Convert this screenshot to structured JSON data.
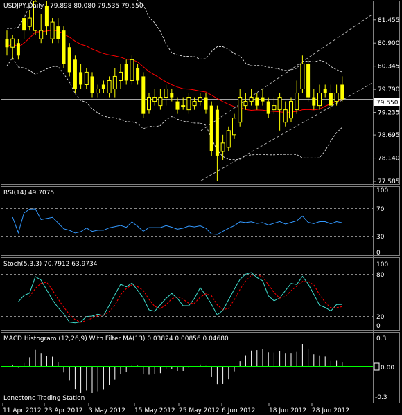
{
  "panels": {
    "price": {
      "symbol": "USDJPY,Daily",
      "ohlc": "79.898 80.080 79.535 79.550",
      "current_price": "79.550",
      "axis": {
        "min": 77.585,
        "max": 81.7,
        "ticks": [
          "81.455",
          "80.900",
          "80.345",
          "79.790",
          "79.235",
          "78.695",
          "78.140",
          "77.585"
        ]
      }
    },
    "rsi": {
      "label": "RSI(14) 49.7075",
      "levels": [
        "70",
        "30"
      ],
      "max_label": "100",
      "min_label": "0"
    },
    "stoch": {
      "label": "Stoch(5,3,3) 70.7912 63.9734",
      "ticks": [
        "100",
        "80",
        "20",
        "0"
      ]
    },
    "macd": {
      "label": "MACD Histogram (12,26,9) With Filter MA(13) 0.03824 0.00856 0.04680",
      "ticks": [
        "0.3",
        "0.00",
        "-0.3"
      ]
    }
  },
  "watermark": "Lonestone Trading Station",
  "x_axis_labels": [
    "11 Apr 2012",
    "23 Apr 2012",
    "3 May 2012",
    "15 May 2012",
    "25 May 2012",
    "6 Jun 2012",
    "18 Jun 2012",
    "28 Jun 2012"
  ],
  "colors": {
    "candle": "#ffff00",
    "ma": "#ff0000",
    "rsi": "#3399ff",
    "stoch_main": "#40e0d0",
    "stoch_signal": "#ff0000",
    "macd_zero": "#00ff00",
    "grid": "#666666"
  },
  "chart_data": {
    "type": "candlestick",
    "x": [
      "2012-04-10",
      "2012-04-11",
      "2012-04-12",
      "2012-04-13",
      "2012-04-16",
      "2012-04-17",
      "2012-04-18",
      "2012-04-19",
      "2012-04-20",
      "2012-04-23",
      "2012-04-24",
      "2012-04-25",
      "2012-04-26",
      "2012-04-27",
      "2012-04-30",
      "2012-05-01",
      "2012-05-02",
      "2012-05-03",
      "2012-05-04",
      "2012-05-07",
      "2012-05-08",
      "2012-05-09",
      "2012-05-10",
      "2012-05-11",
      "2012-05-14",
      "2012-05-15",
      "2012-05-16",
      "2012-05-17",
      "2012-05-18",
      "2012-05-21",
      "2012-05-22",
      "2012-05-23",
      "2012-05-24",
      "2012-05-25",
      "2012-05-28",
      "2012-05-29",
      "2012-05-30",
      "2012-05-31",
      "2012-06-01",
      "2012-06-04",
      "2012-06-05",
      "2012-06-06",
      "2012-06-07",
      "2012-06-08",
      "2012-06-11",
      "2012-06-12",
      "2012-06-13",
      "2012-06-14",
      "2012-06-15",
      "2012-06-18",
      "2012-06-19",
      "2012-06-20",
      "2012-06-21",
      "2012-06-22",
      "2012-06-25",
      "2012-06-26",
      "2012-06-27",
      "2012-06-28",
      "2012-06-29",
      "2012-07-02"
    ],
    "open": [
      81.0,
      80.8,
      80.9,
      81.5,
      81.3,
      81.2,
      81.0,
      81.8,
      81.0,
      81.3,
      81.2,
      80.8,
      80.5,
      80.2,
      79.9,
      80.1,
      79.7,
      79.9,
      79.7,
      79.8,
      80.0,
      80.4,
      80.0,
      80.3,
      80.1,
      79.3,
      79.5,
      79.4,
      79.6,
      79.7,
      79.5,
      79.4,
      79.3,
      79.4,
      79.5,
      79.6,
      79.4,
      79.3,
      78.3,
      78.4,
      78.7,
      79.0,
      79.4,
      79.5,
      79.6,
      79.6,
      79.5,
      79.3,
      79.3,
      79.0,
      79.1,
      79.3,
      79.8,
      80.4,
      79.6,
      79.4,
      79.8,
      79.7,
      79.5,
      79.9
    ],
    "close": [
      80.8,
      81.0,
      80.6,
      81.2,
      81.5,
      81.9,
      81.2,
      81.3,
      81.4,
      81.0,
      80.4,
      80.2,
      79.8,
      79.9,
      80.2,
      79.7,
      79.8,
      79.8,
      80.0,
      80.1,
      80.2,
      80.0,
      80.5,
      80.0,
      79.2,
      79.6,
      79.6,
      79.6,
      79.8,
      79.6,
      79.3,
      79.4,
      79.6,
      79.5,
      79.6,
      79.3,
      78.3,
      78.2,
      78.5,
      78.8,
      79.1,
      79.6,
      79.5,
      79.6,
      79.4,
      79.5,
      79.2,
      79.4,
      79.6,
      79.3,
      79.5,
      79.7,
      80.4,
      79.6,
      79.4,
      79.7,
      79.7,
      79.4,
      79.7,
      79.55
    ],
    "high": [
      81.2,
      81.1,
      81.0,
      81.6,
      81.7,
      82.0,
      81.6,
      81.9,
      81.5,
      81.5,
      81.3,
      80.9,
      80.6,
      80.4,
      80.3,
      80.2,
      79.9,
      80.0,
      80.1,
      80.3,
      80.4,
      80.5,
      80.6,
      80.4,
      80.2,
      79.7,
      79.8,
      79.8,
      79.9,
      79.8,
      79.6,
      79.6,
      79.7,
      79.6,
      79.7,
      79.7,
      79.5,
      79.4,
      78.7,
      78.9,
      79.2,
      79.8,
      79.7,
      79.8,
      79.7,
      79.8,
      79.6,
      79.6,
      79.7,
      79.5,
      79.6,
      80.0,
      80.6,
      80.5,
      79.8,
      79.9,
      79.9,
      79.9,
      79.9,
      80.1
    ],
    "low": [
      80.6,
      80.5,
      80.5,
      81.0,
      81.2,
      81.1,
      80.9,
      81.1,
      80.9,
      80.9,
      80.3,
      80.1,
      79.7,
      79.8,
      79.8,
      79.6,
      79.6,
      79.7,
      79.6,
      79.6,
      79.8,
      79.9,
      79.9,
      79.9,
      79.1,
      79.2,
      79.4,
      79.3,
      79.4,
      79.5,
      79.2,
      79.3,
      79.2,
      79.3,
      79.4,
      79.2,
      78.2,
      77.6,
      78.1,
      78.3,
      78.6,
      78.9,
      79.3,
      79.4,
      79.3,
      79.4,
      79.1,
      79.2,
      78.8,
      78.9,
      79.0,
      79.2,
      79.7,
      79.5,
      79.3,
      79.3,
      79.6,
      79.3,
      79.4,
      79.5
    ]
  }
}
